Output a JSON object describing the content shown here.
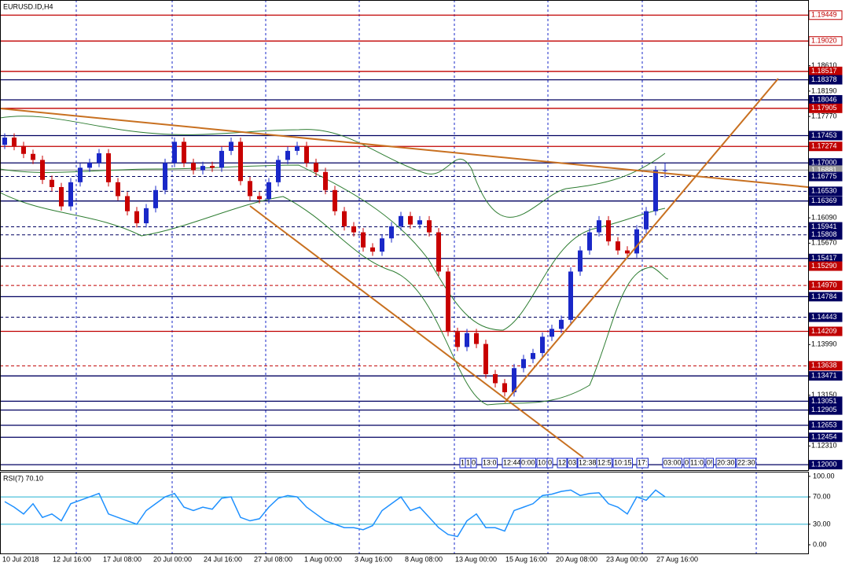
{
  "chart_data": [
    {
      "type": "candlestick",
      "title": "EURUSD.ID,H4",
      "up_color": "#1a28c8",
      "down_color": "#c80000",
      "ylim": [
        1.1191,
        1.197
      ],
      "yticks": [
        {
          "value": 1.1861,
          "label": "1.18610"
        },
        {
          "value": 1.1819,
          "label": "1.18190"
        },
        {
          "value": 1.1777,
          "label": "1.17770"
        },
        {
          "value": 1.1609,
          "label": "1.16090"
        },
        {
          "value": 1.1567,
          "label": "1.15670"
        },
        {
          "value": 1.1399,
          "label": "1.13990"
        },
        {
          "value": 1.1315,
          "label": "1.13150"
        },
        {
          "value": 1.1231,
          "label": "1.12310"
        }
      ],
      "levels": [
        {
          "price": 1.19449,
          "color": "#c00000",
          "box": "#ffffff",
          "dash": false
        },
        {
          "price": {
            "value": 1.1902,
            "label": "1.19020"
          },
          "color": "#c00000",
          "box": "#ffffff",
          "dash": false
        },
        {
          "price": 1.18517,
          "color": "#c00000",
          "box": "#c00000",
          "dash": false
        },
        {
          "price": 1.18378,
          "color": "#000060",
          "box": "#000060",
          "dash": false
        },
        {
          "price": 1.18046,
          "color": "#000060",
          "box": "#000060",
          "dash": false
        },
        {
          "price": 1.17905,
          "color": "#c00000",
          "box": "#c00000",
          "dash": false
        },
        {
          "price": 1.17453,
          "color": "#000060",
          "box": "#000060",
          "dash": false
        },
        {
          "price": 1.17274,
          "color": "#c00000",
          "box": "#c00000",
          "dash": false
        },
        {
          "price": {
            "value": 1.17,
            "label": "1.17000"
          },
          "color": "#000060",
          "box": "#000060",
          "dash": false
        },
        {
          "price": 1.16881,
          "color": "#999999",
          "box": "#999999",
          "dash": false
        },
        {
          "price": 1.16775,
          "color": "#000060",
          "box": "#000060",
          "dash": true
        },
        {
          "price": {
            "value": 1.1653,
            "label": "1.16530"
          },
          "color": "#000060",
          "box": "#000060",
          "dash": true
        },
        {
          "price": 1.16369,
          "color": "#000060",
          "box": "#000060",
          "dash": false
        },
        {
          "price": 1.15941,
          "color": "#000060",
          "box": "#000060",
          "dash": true
        },
        {
          "price": 1.15808,
          "color": "#000060",
          "box": "#000060",
          "dash": true
        },
        {
          "price": 1.15417,
          "color": "#000060",
          "box": "#000060",
          "dash": false
        },
        {
          "price": {
            "value": 1.1529,
            "label": "1.15290"
          },
          "color": "#c00000",
          "box": "#c00000",
          "dash": true
        },
        {
          "price": {
            "value": 1.1497,
            "label": "1.14970"
          },
          "color": "#c00000",
          "box": "#c00000",
          "dash": true
        },
        {
          "price": 1.14784,
          "color": "#000060",
          "box": "#000060",
          "dash": false
        },
        {
          "price": 1.14443,
          "color": "#000060",
          "box": "#000060",
          "dash": true
        },
        {
          "price": 1.14209,
          "color": "#c00000",
          "box": "#c00000",
          "dash": false
        },
        {
          "price": 1.13638,
          "color": "#c00000",
          "box": "#c00000",
          "dash": true
        },
        {
          "price": 1.13471,
          "color": "#000060",
          "box": "#000060",
          "dash": false
        },
        {
          "price": 1.13051,
          "color": "#000060",
          "box": "#000060",
          "dash": false
        },
        {
          "price": 1.12905,
          "color": "#000060",
          "box": "#000060",
          "dash": false
        },
        {
          "price": 1.12653,
          "color": "#000060",
          "box": "#000060",
          "dash": false
        },
        {
          "price": 1.12454,
          "color": "#000060",
          "box": "#000060",
          "dash": false
        },
        {
          "price": {
            "value": 1.12,
            "label": "1.12000"
          },
          "color": "#000060",
          "box": "#000060",
          "dash": false
        }
      ],
      "open": [
        1.173,
        1.1742,
        1.1728,
        1.1715,
        1.1705,
        1.1672,
        1.166,
        1.1628,
        1.1668,
        1.1692,
        1.17,
        1.1716,
        1.1668,
        1.1645,
        1.162,
        1.16,
        1.1625,
        1.1655,
        1.17,
        1.1735,
        1.17,
        1.1688,
        1.1695,
        1.1692,
        1.172,
        1.1735,
        1.167,
        1.1645,
        1.164,
        1.1668,
        1.1705,
        1.172,
        1.1728,
        1.17,
        1.1685,
        1.1655,
        1.162,
        1.1595,
        1.1585,
        1.156,
        1.1553,
        1.1575,
        1.1595,
        1.1612,
        1.1598,
        1.1605,
        1.1585,
        1.152,
        1.142,
        1.1395,
        1.1418,
        1.14,
        1.135,
        1.1335,
        1.132,
        1.136,
        1.1375,
        1.1385,
        1.1412,
        1.1425,
        1.144,
        1.152,
        1.1555,
        1.1585,
        1.1605,
        1.157,
        1.1555,
        1.155,
        1.159,
        1.162,
        1.1688
      ],
      "high": [
        1.1749,
        1.1749,
        1.1735,
        1.1722,
        1.1712,
        1.1679,
        1.1667,
        1.1675,
        1.1699,
        1.1707,
        1.1723,
        1.1723,
        1.1675,
        1.1652,
        1.1627,
        1.1632,
        1.1662,
        1.1707,
        1.1742,
        1.1742,
        1.1707,
        1.1702,
        1.1702,
        1.1727,
        1.1742,
        1.1742,
        1.1677,
        1.1652,
        1.1675,
        1.1712,
        1.1727,
        1.1735,
        1.1735,
        1.1707,
        1.1692,
        1.1662,
        1.1627,
        1.1602,
        1.1592,
        1.1567,
        1.1582,
        1.1602,
        1.1619,
        1.1619,
        1.1612,
        1.1612,
        1.1592,
        1.1527,
        1.1427,
        1.1425,
        1.1425,
        1.1407,
        1.1357,
        1.1342,
        1.1367,
        1.1382,
        1.1392,
        1.1419,
        1.1432,
        1.1447,
        1.1527,
        1.1562,
        1.1592,
        1.1612,
        1.1612,
        1.1577,
        1.1562,
        1.1597,
        1.1627,
        1.1695,
        1.17
      ],
      "low": [
        1.1723,
        1.1721,
        1.1708,
        1.1698,
        1.1665,
        1.1653,
        1.1621,
        1.1621,
        1.1661,
        1.1685,
        1.1693,
        1.1661,
        1.1638,
        1.1613,
        1.1593,
        1.1593,
        1.1618,
        1.1648,
        1.1693,
        1.1693,
        1.1681,
        1.1681,
        1.1685,
        1.1685,
        1.1713,
        1.1663,
        1.1638,
        1.1633,
        1.1633,
        1.1661,
        1.1698,
        1.1713,
        1.1693,
        1.1678,
        1.1648,
        1.1613,
        1.1588,
        1.1578,
        1.1553,
        1.1546,
        1.1546,
        1.1568,
        1.1588,
        1.1591,
        1.1591,
        1.1578,
        1.1513,
        1.1413,
        1.1388,
        1.1388,
        1.1393,
        1.1343,
        1.1328,
        1.1313,
        1.1313,
        1.1353,
        1.1368,
        1.1378,
        1.1405,
        1.1418,
        1.1433,
        1.1513,
        1.1548,
        1.1578,
        1.1563,
        1.1548,
        1.1543,
        1.1543,
        1.1583,
        1.1613,
        1.1675
      ],
      "close": [
        1.1742,
        1.1728,
        1.1715,
        1.1705,
        1.1672,
        1.166,
        1.1628,
        1.1668,
        1.1692,
        1.17,
        1.1716,
        1.1668,
        1.1645,
        1.162,
        1.16,
        1.1625,
        1.1655,
        1.17,
        1.1735,
        1.17,
        1.1688,
        1.1695,
        1.1692,
        1.172,
        1.1735,
        1.167,
        1.1645,
        1.164,
        1.1668,
        1.1705,
        1.172,
        1.1728,
        1.17,
        1.1685,
        1.1655,
        1.162,
        1.1595,
        1.1585,
        1.156,
        1.1553,
        1.1575,
        1.1595,
        1.1612,
        1.1598,
        1.1605,
        1.1585,
        1.152,
        1.142,
        1.1395,
        1.1418,
        1.14,
        1.135,
        1.1335,
        1.132,
        1.136,
        1.1375,
        1.1385,
        1.1412,
        1.1425,
        1.144,
        1.152,
        1.1555,
        1.1585,
        1.1605,
        1.157,
        1.1555,
        1.155,
        1.159,
        1.162,
        1.1688,
        1.1688
      ],
      "time_labels": [
        "10 Jul 2018",
        "12 Jul 16:00",
        "17 Jul 08:00",
        "20 Jul 00:00",
        "24 Jul 16:00",
        "27 Jul 08:00",
        "1 Aug 00:00",
        "3 Aug 16:00",
        "8 Aug 08:00",
        "13 Aug 00:00",
        "15 Aug 16:00",
        "20 Aug 08:00",
        "23 Aug 00:00",
        "27 Aug 16:00"
      ],
      "time_boxes": [
        "1",
        "1",
        "0",
        "13:0",
        "12:44",
        "0:00",
        "10:",
        "0",
        "12",
        "03",
        "12:38",
        "12:5",
        "10:15",
        "17:",
        "03:00",
        "0",
        "11:0",
        "0!",
        "20:30",
        "22:30"
      ]
    },
    {
      "type": "line",
      "title": "RSI(7) 70.10",
      "color": "#1e90ff",
      "level_color": "#20b0d0",
      "ylim": [
        -13.8,
        105.7
      ],
      "yticks": [
        {
          "value": 100,
          "label": "100.00"
        },
        {
          "value": 70,
          "label": "70.00"
        },
        {
          "value": 30,
          "label": "30.00"
        },
        {
          "value": 0,
          "label": "0.00"
        }
      ],
      "hlines": [
        70,
        30
      ],
      "values": [
        63,
        55,
        45,
        60,
        40,
        45,
        35,
        60,
        65,
        70,
        75,
        45,
        40,
        35,
        30,
        50,
        60,
        70,
        75,
        55,
        50,
        55,
        52,
        68,
        70,
        40,
        35,
        38,
        55,
        68,
        72,
        70,
        55,
        45,
        35,
        30,
        25,
        25,
        22,
        28,
        50,
        60,
        70,
        50,
        55,
        40,
        25,
        15,
        12,
        35,
        45,
        25,
        25,
        20,
        50,
        55,
        60,
        72,
        74,
        78,
        80,
        72,
        75,
        76,
        60,
        55,
        45,
        70,
        65,
        80,
        70.1
      ]
    }
  ]
}
